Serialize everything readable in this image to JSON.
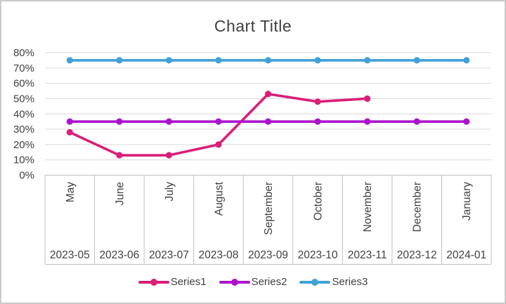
{
  "chart": {
    "title": "Chart Title"
  },
  "chart_data": {
    "type": "line",
    "title": "Chart Title",
    "categories": [
      "May",
      "June",
      "July",
      "August",
      "September",
      "October",
      "November",
      "December",
      "January"
    ],
    "category_dates": [
      "2023-05",
      "2023-06",
      "2023-07",
      "2023-08",
      "2023-09",
      "2023-10",
      "2023-11",
      "2023-12",
      "2024-01"
    ],
    "y_ticks": [
      "0%",
      "10%",
      "20%",
      "30%",
      "40%",
      "50%",
      "60%",
      "70%",
      "80%"
    ],
    "ylim": [
      0,
      80
    ],
    "y_unit": "%",
    "grid": true,
    "legend_position": "bottom",
    "series": [
      {
        "name": "Series1",
        "color": "#D91F77",
        "values": [
          28,
          13,
          13,
          20,
          53,
          48,
          50
        ]
      },
      {
        "name": "Series2",
        "color": "#AD13CD",
        "values": [
          35,
          35,
          35,
          35,
          35,
          35,
          35,
          35,
          35
        ]
      },
      {
        "name": "Series3",
        "color": "#41A0D8",
        "values": [
          75,
          75,
          75,
          75,
          75,
          75,
          75,
          75,
          75
        ]
      }
    ],
    "theme": {
      "gridline_color": "#D9D9D9",
      "band_border_color": "#BFBFBF",
      "axis_text_color": "#404040",
      "title_color": "#404040",
      "background": "#FFFFFF",
      "frame_border_color": "#C9C9C9"
    }
  }
}
